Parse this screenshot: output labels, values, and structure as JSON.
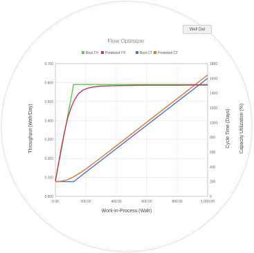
{
  "toolbar": {
    "corner_button_label": "Well Dat"
  },
  "chart_data": {
    "type": "line",
    "title": "Flow Optimizer",
    "xlabel": "Work-in-Process (Wafr)",
    "ylabel_left": "Throughput (Wafr/Day)",
    "ylabel_right": "Cycle Time (Days)",
    "ylabel_far_right": "Capacity Utilization (%)",
    "xlim": [
      0,
      1000
    ],
    "ylim_left": [
      0,
      0.7
    ],
    "ylim_right": [
      0,
      1800
    ],
    "x_ticks": [
      "0.00",
      "200.00",
      "400.00",
      "600.00",
      "800.00",
      "1,000.00"
    ],
    "y_ticks_left": [
      "0.000",
      "0.100",
      "0.200",
      "0.300",
      "0.400",
      "0.500",
      "0.600",
      "0.700"
    ],
    "y_ticks_right": [
      "0",
      "200",
      "400",
      "600",
      "800",
      "1000",
      "1200",
      "1400",
      "1600",
      "1800"
    ],
    "grid": true,
    "legend_position": "top",
    "series": [
      {
        "name": "Best TH",
        "axis": "left",
        "color": "#5cc84a",
        "x": [
          0,
          120,
          1000
        ],
        "y": [
          0.08,
          0.59,
          0.59
        ]
      },
      {
        "name": "Predicted TH",
        "axis": "left",
        "color": "#c9325a",
        "x": [
          0,
          20,
          40,
          60,
          80,
          100,
          120,
          150,
          180,
          220,
          260,
          300,
          400,
          500,
          600,
          700,
          800,
          900,
          1000
        ],
        "y": [
          0.08,
          0.17,
          0.26,
          0.34,
          0.41,
          0.46,
          0.5,
          0.54,
          0.56,
          0.572,
          0.578,
          0.581,
          0.584,
          0.585,
          0.586,
          0.586,
          0.586,
          0.587,
          0.587
        ]
      },
      {
        "name": "Best CT",
        "axis": "right",
        "color": "#4a72c8",
        "x": [
          0,
          120,
          1000
        ],
        "y": [
          200,
          200,
          1600
        ]
      },
      {
        "name": "Predicted CT",
        "axis": "right",
        "color": "#e0703a",
        "x": [
          0,
          40,
          80,
          120,
          160,
          200,
          300,
          400,
          500,
          600,
          700,
          800,
          900,
          1000
        ],
        "y": [
          200,
          205,
          225,
          265,
          315,
          370,
          525,
          685,
          845,
          1005,
          1165,
          1325,
          1485,
          1645
        ]
      }
    ]
  }
}
